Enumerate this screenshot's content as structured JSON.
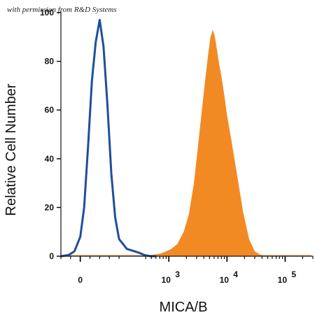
{
  "watermark": "with permission from R&D Systems",
  "chart_data": {
    "type": "area",
    "xlabel": "MICA/B",
    "ylabel": "Relative Cell Number",
    "x_scale": "biexponential",
    "ylim": [
      0,
      100
    ],
    "yticks": [
      0,
      20,
      40,
      60,
      80,
      100
    ],
    "xticks": [
      {
        "base": "0",
        "exp": ""
      },
      {
        "base": "10",
        "exp": "3"
      },
      {
        "base": "10",
        "exp": "4"
      },
      {
        "base": "10",
        "exp": "5"
      }
    ],
    "colors": {
      "control": "#1f4e9c",
      "stained": "#f28a24"
    },
    "series": [
      {
        "key": "control",
        "style": "outline",
        "x": [
          -100,
          -60,
          -30,
          0,
          20,
          40,
          60,
          80,
          100,
          120,
          140,
          160,
          180,
          200,
          240,
          300,
          380,
          480,
          600
        ],
        "y": [
          0,
          0.5,
          2,
          8,
          20,
          45,
          72,
          88,
          97,
          86,
          62,
          34,
          16,
          7,
          3,
          1.5,
          0.5,
          0,
          0
        ]
      },
      {
        "key": "stained",
        "style": "filled",
        "x": [
          300,
          500,
          700,
          900,
          1100,
          1400,
          1800,
          2200,
          2700,
          3200,
          3700,
          4200,
          4700,
          5200,
          5700,
          6200,
          6700,
          7200,
          8000,
          9000,
          10000,
          12000,
          15000,
          19000,
          24000,
          30000,
          38000,
          48000
        ],
        "y": [
          0,
          0.5,
          1,
          2,
          3,
          5,
          10,
          17,
          30,
          46,
          60,
          72,
          82,
          90,
          93,
          90,
          85,
          80,
          74,
          66,
          58,
          47,
          33,
          18,
          7,
          2,
          0.5,
          0
        ]
      }
    ]
  }
}
